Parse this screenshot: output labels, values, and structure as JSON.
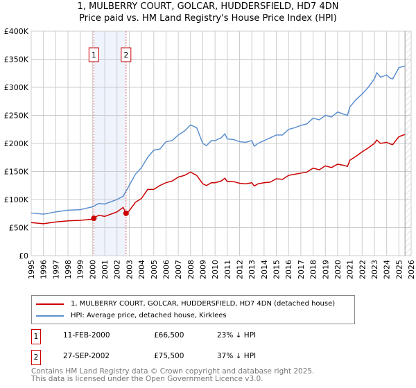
{
  "chart_data": {
    "type": "line",
    "title": "1, MULBERRY COURT, GOLCAR, HUDDERSFIELD, HD7 4DN",
    "subtitle": "Price paid vs. HM Land Registry's House Price Index (HPI)",
    "xlim": [
      1995,
      2026
    ],
    "ylim": [
      0,
      400000
    ],
    "x_ticks": [
      "1995",
      "1996",
      "1997",
      "1998",
      "1999",
      "2000",
      "2001",
      "2002",
      "2003",
      "2004",
      "2005",
      "2006",
      "2007",
      "2008",
      "2009",
      "2010",
      "2011",
      "2012",
      "2013",
      "2014",
      "2015",
      "2016",
      "2017",
      "2018",
      "2019",
      "2020",
      "2021",
      "2022",
      "2023",
      "2024",
      "2025",
      "2026"
    ],
    "y_ticks": [
      {
        "v": 0,
        "label": "£0"
      },
      {
        "v": 50000,
        "label": "£50K"
      },
      {
        "v": 100000,
        "label": "£100K"
      },
      {
        "v": 150000,
        "label": "£150K"
      },
      {
        "v": 200000,
        "label": "£200K"
      },
      {
        "v": 250000,
        "label": "£250K"
      },
      {
        "v": 300000,
        "label": "£300K"
      },
      {
        "v": 350000,
        "label": "£350K"
      },
      {
        "v": 400000,
        "label": "£400K"
      }
    ],
    "grid": true,
    "shaded_range": [
      2000.11,
      2002.74
    ],
    "hatched_from": 2025.5,
    "series": [
      {
        "name": "1, MULBERRY COURT, GOLCAR, HUDDERSFIELD, HD7 4DN (detached house)",
        "color": "#cc0000",
        "x": [
          1995,
          1996,
          1997,
          1998,
          1999,
          2000,
          2000.11,
          2000.5,
          2001,
          2002,
          2002.5,
          2002.74,
          2003,
          2003.5,
          2004,
          2004.5,
          2005,
          2005.5,
          2006,
          2006.5,
          2007,
          2007.5,
          2008,
          2008.5,
          2009,
          2009.3,
          2009.7,
          2010,
          2010.5,
          2010.8,
          2011,
          2011.5,
          2012,
          2012.5,
          2013,
          2013.2,
          2013.5,
          2014,
          2014.5,
          2015,
          2015.5,
          2016,
          2016.5,
          2017,
          2017.5,
          2018,
          2018.5,
          2019,
          2019.5,
          2020,
          2020.5,
          2020.8,
          2021,
          2021.5,
          2022,
          2022.5,
          2023,
          2023.2,
          2023.5,
          2024,
          2024.3,
          2024.5,
          2025,
          2025.5
        ],
        "y": [
          59000,
          57000,
          60000,
          62000,
          63000,
          65000,
          66500,
          72000,
          70000,
          78000,
          86000,
          75500,
          80000,
          95000,
          102000,
          118000,
          118000,
          125000,
          130000,
          133000,
          140000,
          143000,
          149000,
          143000,
          128000,
          125000,
          130000,
          130000,
          133000,
          138000,
          132000,
          132000,
          129000,
          128000,
          130000,
          124000,
          128000,
          130000,
          131000,
          137000,
          136000,
          143000,
          145000,
          147000,
          149000,
          156000,
          153000,
          160000,
          157000,
          163000,
          161000,
          159000,
          170000,
          177000,
          185000,
          192000,
          200000,
          206000,
          200000,
          202000,
          199000,
          198000,
          212000,
          216000
        ]
      },
      {
        "name": "HPI: Average price, detached house, Kirklees",
        "color": "#5b8fd0",
        "x": [
          1995,
          1996,
          1997,
          1998,
          1999,
          2000,
          2000.5,
          2001,
          2002,
          2002.5,
          2003,
          2003.5,
          2004,
          2004.5,
          2005,
          2005.5,
          2006,
          2006.5,
          2007,
          2007.5,
          2008,
          2008.5,
          2009,
          2009.3,
          2009.7,
          2010,
          2010.5,
          2010.8,
          2011,
          2011.5,
          2012,
          2012.5,
          2013,
          2013.2,
          2013.5,
          2014,
          2014.5,
          2015,
          2015.5,
          2016,
          2016.5,
          2017,
          2017.5,
          2018,
          2018.5,
          2019,
          2019.5,
          2020,
          2020.5,
          2020.8,
          2021,
          2021.5,
          2022,
          2022.5,
          2023,
          2023.2,
          2023.5,
          2024,
          2024.3,
          2024.5,
          2025,
          2025.5
        ],
        "y": [
          76000,
          74000,
          78000,
          81000,
          82000,
          87000,
          93000,
          92000,
          100000,
          106000,
          125000,
          145000,
          157000,
          175000,
          188000,
          190000,
          203000,
          205000,
          215000,
          222000,
          233000,
          228000,
          200000,
          196000,
          205000,
          205000,
          210000,
          217000,
          208000,
          207000,
          203000,
          202000,
          205000,
          195000,
          200000,
          205000,
          210000,
          215000,
          215000,
          225000,
          228000,
          232000,
          235000,
          245000,
          242000,
          250000,
          247000,
          256000,
          252000,
          250000,
          265000,
          278000,
          288000,
          300000,
          315000,
          326000,
          318000,
          322000,
          316000,
          315000,
          335000,
          338000
        ]
      }
    ],
    "markers": [
      {
        "label": "1",
        "x": 2000.11,
        "y": 66500
      },
      {
        "label": "2",
        "x": 2002.74,
        "y": 75500
      }
    ]
  },
  "transactions": [
    {
      "num": "1",
      "date": "11-FEB-2000",
      "price": "£66,500",
      "hpi": "23% ↓ HPI"
    },
    {
      "num": "2",
      "date": "27-SEP-2002",
      "price": "£75,500",
      "hpi": "37% ↓ HPI"
    }
  ],
  "footer": {
    "line1": "Contains HM Land Registry data © Crown copyright and database right 2025.",
    "line2": "This data is licensed under the Open Government Licence v3.0."
  }
}
